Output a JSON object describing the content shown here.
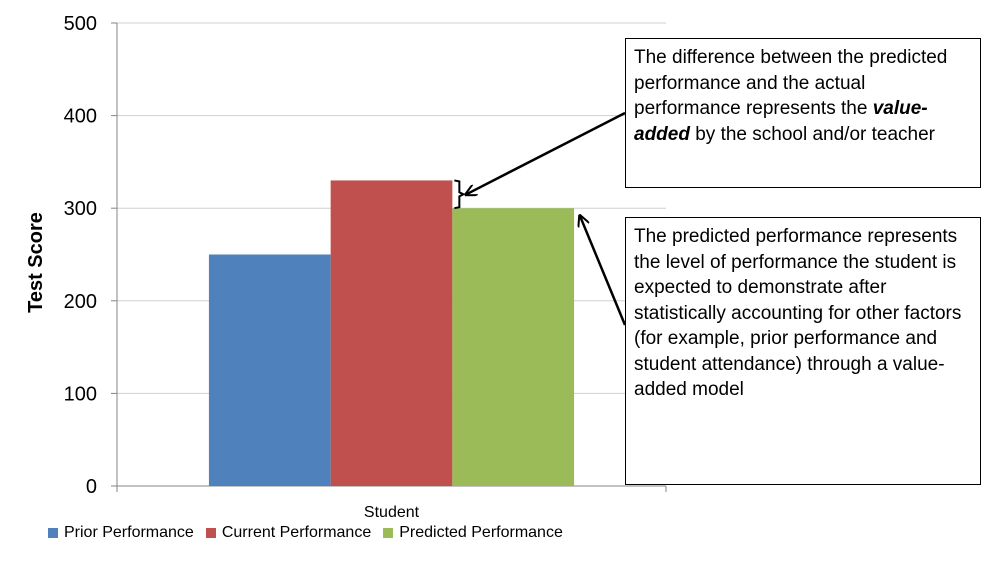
{
  "chart_data": {
    "type": "bar",
    "categories": [
      "Student"
    ],
    "series": [
      {
        "name": "Prior Performance",
        "values": [
          250
        ],
        "color": "#4F81BD"
      },
      {
        "name": "Current Performance",
        "values": [
          330
        ],
        "color": "#C0504D"
      },
      {
        "name": "Predicted Performance",
        "values": [
          300
        ],
        "color": "#9BBB59"
      }
    ],
    "ylabel": "Test Score",
    "xlabel": "",
    "ylim": [
      0,
      500
    ],
    "yticks": [
      0,
      100,
      200,
      300,
      400,
      500
    ],
    "grid": true,
    "legend_position": "bottom"
  },
  "annotations": {
    "value_added": {
      "text_before": "The difference between the predicted performance and the actual performance represents the ",
      "emphasis": "value-added",
      "text_after": " by the school and/or teacher"
    },
    "predicted": {
      "text": "The predicted performance represents the level of performance the student is expected to demonstrate after statistically accounting for other factors (for example, prior performance and student attendance) through a value-added model"
    }
  }
}
